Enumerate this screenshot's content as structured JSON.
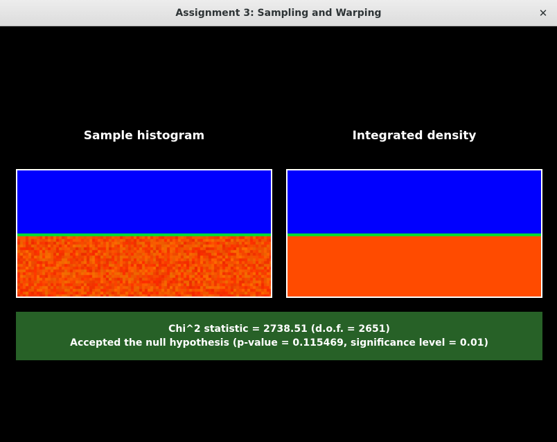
{
  "window": {
    "title": "Assignment 3: Sampling and Warping",
    "close_icon": "close-icon"
  },
  "panels": {
    "left_title": "Sample histogram",
    "right_title": "Integrated density"
  },
  "result": {
    "line1": "Chi^2 statistic = 2738.51 (d.o.f. = 2651)",
    "line2": "Accepted the null hypothesis (p-value = 0.115469, significance level = 0.01)"
  },
  "colors": {
    "background": "#000000",
    "low_density": "#0000ff",
    "boundary": "#00e030",
    "high_density": "#ff4b00",
    "result_box": "#276127"
  }
}
